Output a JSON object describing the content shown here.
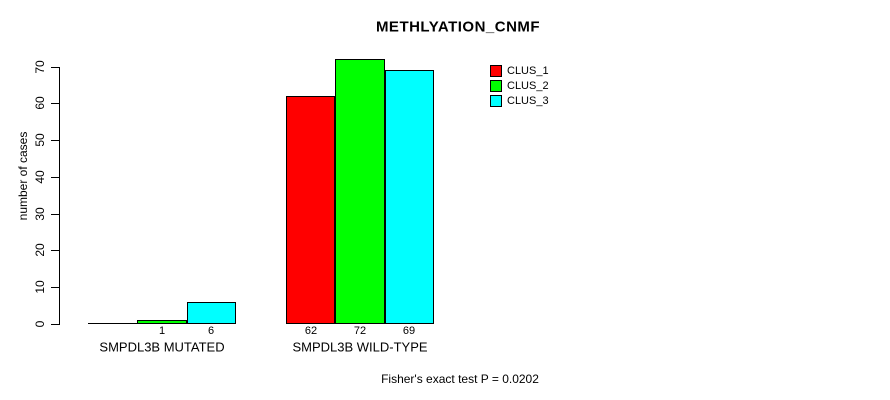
{
  "page": {
    "background": "#ffffff",
    "text_color": "#000000"
  },
  "chart_data": {
    "type": "bar",
    "title": "METHLYATION_CNMF",
    "ylabel": "number of cases",
    "xlabel": "",
    "categories": [
      "SMPDL3B MUTATED",
      "SMPDL3B WILD-TYPE"
    ],
    "series": [
      {
        "name": "CLUS_1",
        "color": "#ff0000",
        "values": [
          0,
          62
        ]
      },
      {
        "name": "CLUS_2",
        "color": "#00ff00",
        "values": [
          1,
          72
        ]
      },
      {
        "name": "CLUS_3",
        "color": "#00ffff",
        "values": [
          6,
          69
        ]
      }
    ],
    "value_labels": [
      [
        "",
        "1",
        "6"
      ],
      [
        "62",
        "72",
        "69"
      ]
    ],
    "y_ticks": [
      0,
      10,
      20,
      30,
      40,
      50,
      60,
      70
    ],
    "ylim": [
      0,
      72
    ],
    "grid": false,
    "bar_border_color": "#000000",
    "legend": {
      "position": "top-right",
      "entries": [
        "CLUS_1",
        "CLUS_2",
        "CLUS_3"
      ]
    },
    "annotation": "Fisher's exact test P = 0.0202"
  }
}
